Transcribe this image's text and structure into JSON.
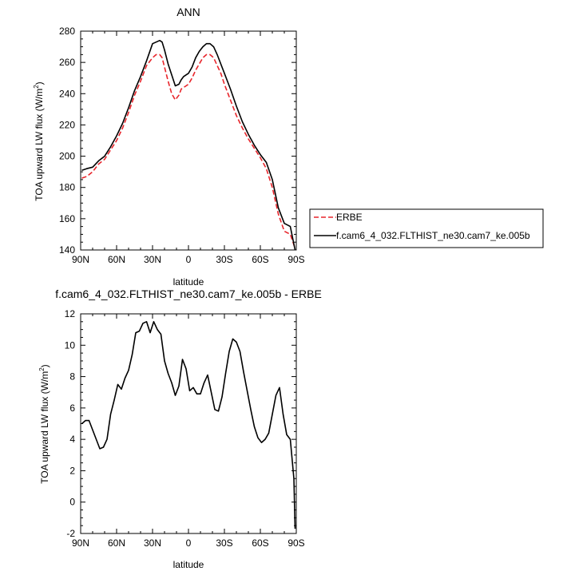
{
  "chart_data": [
    {
      "type": "line",
      "title": "ANN",
      "xlabel": "latitude",
      "ylabel": "TOA upward LW flux (W/m",
      "ylabel_sup": "2",
      "ylabel_close": ")",
      "xlim": [
        90,
        -90
      ],
      "ylim": [
        140,
        280
      ],
      "xticks": [
        90,
        60,
        30,
        0,
        -30,
        -60,
        -90
      ],
      "xtick_labels": [
        "90N",
        "60N",
        "30N",
        "0",
        "30S",
        "60S",
        "90S"
      ],
      "yticks": [
        140,
        160,
        180,
        200,
        220,
        240,
        260,
        280
      ],
      "ytick_labels": [
        "140",
        "160",
        "180",
        "200",
        "220",
        "240",
        "260",
        "280"
      ],
      "grid": false,
      "legend_position": "right",
      "series": [
        {
          "name": "ERBE",
          "color": "#e8252b",
          "dash": "dashed",
          "x": [
            89,
            85,
            80,
            75,
            70,
            65,
            60,
            55,
            50,
            45,
            40,
            35,
            30,
            27,
            24,
            22,
            20,
            17,
            14,
            11,
            8,
            6,
            4,
            2,
            0,
            -3,
            -6,
            -9,
            -12,
            -15,
            -18,
            -21,
            -24,
            -27,
            -30,
            -35,
            -40,
            -45,
            -50,
            -55,
            -60,
            -65,
            -70,
            -75,
            -80,
            -85,
            -89
          ],
          "y": [
            186,
            187,
            190,
            195,
            198,
            204,
            210,
            218,
            228,
            239,
            248,
            258,
            263,
            265,
            265,
            263,
            257,
            248,
            240,
            236,
            239,
            243,
            244,
            245,
            246,
            250,
            255,
            259,
            263,
            265,
            265,
            263,
            258,
            253,
            246,
            236,
            226,
            218,
            211,
            205,
            199,
            192,
            180,
            163,
            152,
            150,
            141
          ]
        },
        {
          "name": "f.cam6_4_032.FLTHIST_ne30.cam7_ke.005b",
          "color": "#000000",
          "dash": "solid",
          "x": [
            89,
            85,
            80,
            75,
            70,
            65,
            60,
            55,
            50,
            45,
            40,
            35,
            30,
            27,
            24,
            22,
            20,
            17,
            14,
            11,
            8,
            6,
            4,
            2,
            0,
            -3,
            -6,
            -9,
            -12,
            -15,
            -18,
            -21,
            -24,
            -27,
            -30,
            -35,
            -40,
            -45,
            -50,
            -55,
            -60,
            -65,
            -70,
            -75,
            -80,
            -85,
            -89
          ],
          "y": [
            191,
            192,
            193,
            197,
            200,
            206,
            213,
            221,
            231,
            242,
            251,
            261,
            272,
            273,
            274,
            273,
            268,
            259,
            252,
            245,
            246,
            249,
            251,
            252,
            253,
            257,
            263,
            267,
            270,
            272,
            272,
            270,
            265,
            259,
            253,
            243,
            232,
            222,
            214,
            207,
            201,
            196,
            185,
            167,
            157,
            155,
            140
          ]
        }
      ]
    },
    {
      "type": "line",
      "title": "f.cam6_4_032.FLTHIST_ne30.cam7_ke.005b - ERBE",
      "xlabel": "latitude",
      "ylabel": "TOA upward LW flux (W/m",
      "ylabel_sup": "2",
      "ylabel_close": ")",
      "xlim": [
        90,
        -90
      ],
      "ylim": [
        -2,
        12
      ],
      "xticks": [
        90,
        60,
        30,
        0,
        -30,
        -60,
        -90
      ],
      "xtick_labels": [
        "90N",
        "60N",
        "30N",
        "0",
        "30S",
        "60S",
        "90S"
      ],
      "yticks": [
        -2,
        0,
        2,
        4,
        6,
        8,
        10,
        12
      ],
      "ytick_labels": [
        "-2",
        "0",
        "2",
        "4",
        "6",
        "8",
        "10",
        "12"
      ],
      "grid": false,
      "series": [
        {
          "name": "",
          "color": "#000000",
          "dash": "solid",
          "x": [
            89,
            86,
            83,
            80,
            77,
            74,
            71,
            68,
            65,
            62,
            59,
            56,
            53,
            50,
            47,
            44,
            41,
            38,
            35,
            32,
            29,
            26,
            23,
            20,
            17,
            14,
            11,
            8,
            5,
            2,
            -1,
            -4,
            -7,
            -10,
            -13,
            -16,
            -19,
            -22,
            -25,
            -28,
            -31,
            -34,
            -37,
            -40,
            -43,
            -46,
            -49,
            -52,
            -55,
            -58,
            -61,
            -64,
            -67,
            -70,
            -73,
            -76,
            -79,
            -82,
            -85,
            -88,
            -89
          ],
          "y": [
            5.0,
            5.2,
            5.2,
            4.6,
            4.0,
            3.4,
            3.5,
            4.0,
            5.6,
            6.5,
            7.5,
            7.2,
            7.9,
            8.4,
            9.4,
            10.8,
            10.9,
            11.4,
            11.5,
            10.8,
            11.5,
            11.0,
            10.7,
            9.0,
            8.2,
            7.6,
            6.8,
            7.4,
            9.1,
            8.5,
            7.1,
            7.3,
            6.9,
            6.9,
            7.6,
            8.1,
            7.0,
            5.9,
            5.8,
            6.7,
            8.2,
            9.6,
            10.4,
            10.2,
            9.6,
            8.3,
            7.1,
            5.9,
            4.8,
            4.1,
            3.8,
            4.0,
            4.4,
            5.6,
            6.8,
            7.3,
            5.6,
            4.3,
            4.0,
            1.5,
            -1.7
          ]
        }
      ]
    }
  ],
  "legend": {
    "items": [
      {
        "label": "ERBE",
        "color": "#e8252b",
        "dash": "dashed"
      },
      {
        "label": "f.cam6_4_032.FLTHIST_ne30.cam7_ke.005b",
        "color": "#000000",
        "dash": "solid"
      }
    ]
  }
}
